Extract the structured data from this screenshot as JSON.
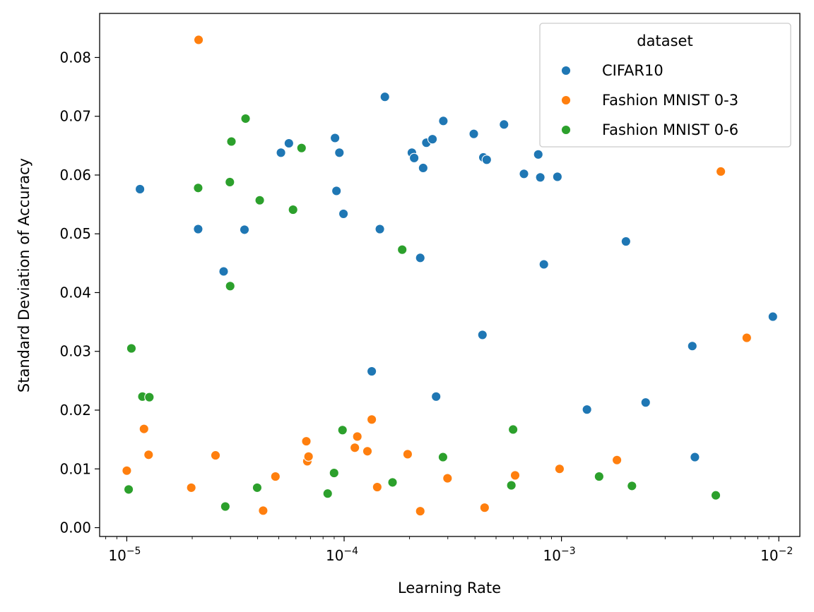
{
  "chart_data": {
    "type": "scatter",
    "title": "",
    "xlabel": "Learning Rate",
    "ylabel": "Standard Deviation of Accuracy",
    "xscale": "log",
    "xlim": [
      7.5e-06,
      0.0125
    ],
    "ylim": [
      -0.0015,
      0.0875
    ],
    "x_ticks": [
      {
        "value": 1e-05,
        "base": "10",
        "exp": "−5"
      },
      {
        "value": 0.0001,
        "base": "10",
        "exp": "−4"
      },
      {
        "value": 0.001,
        "base": "10",
        "exp": "−3"
      },
      {
        "value": 0.01,
        "base": "10",
        "exp": "−2"
      }
    ],
    "y_ticks": [
      {
        "value": 0.0,
        "label": "0.00"
      },
      {
        "value": 0.01,
        "label": "0.01"
      },
      {
        "value": 0.02,
        "label": "0.02"
      },
      {
        "value": 0.03,
        "label": "0.03"
      },
      {
        "value": 0.04,
        "label": "0.04"
      },
      {
        "value": 0.05,
        "label": "0.05"
      },
      {
        "value": 0.06,
        "label": "0.06"
      },
      {
        "value": 0.07,
        "label": "0.07"
      },
      {
        "value": 0.08,
        "label": "0.08"
      }
    ],
    "grid": false,
    "legend": {
      "title": "dataset",
      "position": "top-right"
    },
    "series": [
      {
        "name": "CIFAR10",
        "color": "#1f77b4",
        "points": [
          [
            1.15e-05,
            0.0576
          ],
          [
            2.13e-05,
            0.0508
          ],
          [
            2.79e-05,
            0.0436
          ],
          [
            3.48e-05,
            0.0507
          ],
          [
            5.12e-05,
            0.0638
          ],
          [
            5.57e-05,
            0.0654
          ],
          [
            9.08e-05,
            0.0663
          ],
          [
            9.22e-05,
            0.0573
          ],
          [
            9.51e-05,
            0.0638
          ],
          [
            9.93e-05,
            0.0534
          ],
          [
            0.000134,
            0.0266
          ],
          [
            0.000146,
            0.0508
          ],
          [
            0.000154,
            0.0733
          ],
          [
            0.000205,
            0.0638
          ],
          [
            0.00021,
            0.0629
          ],
          [
            0.000224,
            0.0459
          ],
          [
            0.000231,
            0.0612
          ],
          [
            0.000239,
            0.0655
          ],
          [
            0.000255,
            0.0661
          ],
          [
            0.000265,
            0.0223
          ],
          [
            0.000286,
            0.0692
          ],
          [
            0.000395,
            0.067
          ],
          [
            0.000433,
            0.0328
          ],
          [
            0.000437,
            0.063
          ],
          [
            0.000453,
            0.0626
          ],
          [
            0.000544,
            0.0686
          ],
          [
            0.000672,
            0.0602
          ],
          [
            0.000782,
            0.0635
          ],
          [
            0.000799,
            0.0596
          ],
          [
            0.00083,
            0.0448
          ],
          [
            0.000958,
            0.0597
          ],
          [
            0.00131,
            0.0201
          ],
          [
            0.00198,
            0.0487
          ],
          [
            0.00244,
            0.0213
          ],
          [
            0.004,
            0.0309
          ],
          [
            0.00411,
            0.012
          ],
          [
            0.00939,
            0.0359
          ]
        ]
      },
      {
        "name": "Fashion MNIST 0-3",
        "color": "#ff7f0e",
        "points": [
          [
            1e-05,
            0.0097
          ],
          [
            1.2e-05,
            0.0168
          ],
          [
            1.26e-05,
            0.0124
          ],
          [
            1.98e-05,
            0.0068
          ],
          [
            2.14e-05,
            0.083
          ],
          [
            2.56e-05,
            0.0123
          ],
          [
            4.24e-05,
            0.0029
          ],
          [
            4.83e-05,
            0.0087
          ],
          [
            6.7e-05,
            0.0147
          ],
          [
            6.77e-05,
            0.0113
          ],
          [
            6.86e-05,
            0.0121
          ],
          [
            0.000112,
            0.0136
          ],
          [
            0.000115,
            0.0155
          ],
          [
            0.000128,
            0.013
          ],
          [
            0.000134,
            0.0184
          ],
          [
            0.000142,
            0.0069
          ],
          [
            0.000196,
            0.0125
          ],
          [
            0.000224,
            0.0028
          ],
          [
            0.000299,
            0.0084
          ],
          [
            0.000443,
            0.0034
          ],
          [
            0.000612,
            0.0089
          ],
          [
            0.00098,
            0.01
          ],
          [
            0.0018,
            0.0115
          ],
          [
            0.00541,
            0.0606
          ],
          [
            0.00712,
            0.0323
          ]
        ]
      },
      {
        "name": "Fashion MNIST 0-6",
        "color": "#2ca02c",
        "points": [
          [
            1.02e-05,
            0.0065
          ],
          [
            1.05e-05,
            0.0305
          ],
          [
            1.18e-05,
            0.0223
          ],
          [
            1.27e-05,
            0.0222
          ],
          [
            2.13e-05,
            0.0578
          ],
          [
            2.84e-05,
            0.0036
          ],
          [
            2.98e-05,
            0.0588
          ],
          [
            2.99e-05,
            0.0411
          ],
          [
            3.03e-05,
            0.0657
          ],
          [
            3.52e-05,
            0.0696
          ],
          [
            3.98e-05,
            0.0068
          ],
          [
            4.09e-05,
            0.0557
          ],
          [
            5.82e-05,
            0.0541
          ],
          [
            6.37e-05,
            0.0646
          ],
          [
            8.4e-05,
            0.0058
          ],
          [
            8.99e-05,
            0.0093
          ],
          [
            9.83e-05,
            0.0166
          ],
          [
            0.000167,
            0.0077
          ],
          [
            0.000185,
            0.0473
          ],
          [
            0.000285,
            0.012
          ],
          [
            0.000588,
            0.0072
          ],
          [
            0.000599,
            0.0167
          ],
          [
            0.00149,
            0.0087
          ],
          [
            0.00211,
            0.0071
          ],
          [
            0.00513,
            0.0055
          ]
        ]
      }
    ]
  }
}
